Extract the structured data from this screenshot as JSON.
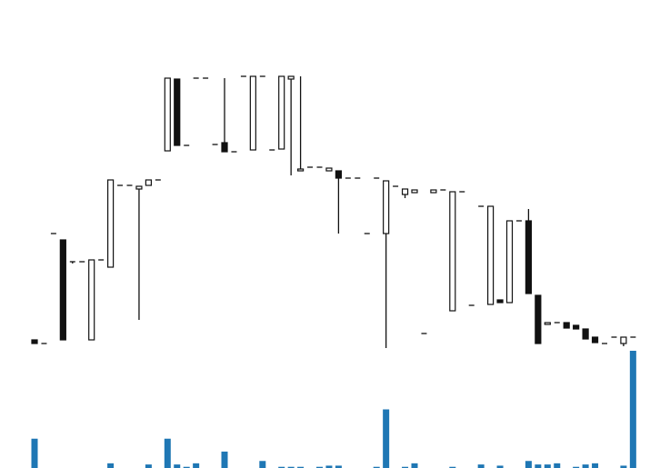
{
  "chart_data": {
    "type": "candlestick",
    "title": "",
    "xlabel": "",
    "ylabel": "",
    "grid": false,
    "legend": "none",
    "colors": {
      "up_body": "#ffffff",
      "up_edge": "#111111",
      "down_body": "#111111",
      "wick": "#111111",
      "volume": "#1f77b4"
    },
    "price_range": [
      -14,
      370
    ],
    "volume_range": [
      0,
      100
    ],
    "candles": [
      {
        "open": 0,
        "high": 0,
        "low": -4,
        "close": -4,
        "volume": 25
      },
      {
        "open": -4,
        "high": -4,
        "low": -4,
        "close": -4,
        "volume": 0
      },
      {
        "open": 117,
        "high": 117,
        "low": 117,
        "close": 117,
        "volume": 0
      },
      {
        "open": 110,
        "high": 110,
        "low": 0,
        "close": 0,
        "volume": 0
      },
      {
        "open": 86,
        "high": 86,
        "low": 84,
        "close": 86,
        "volume": 0
      },
      {
        "open": 86,
        "high": 86,
        "low": 86,
        "close": 86,
        "volume": 0
      },
      {
        "open": 0,
        "high": 88,
        "low": 0,
        "close": 88,
        "volume": 0
      },
      {
        "open": 88,
        "high": 88,
        "low": 88,
        "close": 88,
        "volume": 0
      },
      {
        "open": 80,
        "high": 176,
        "low": 80,
        "close": 176,
        "volume": 4
      },
      {
        "open": 170,
        "high": 170,
        "low": 170,
        "close": 170,
        "volume": 0
      },
      {
        "open": 170,
        "high": 170,
        "low": 170,
        "close": 170,
        "volume": 0
      },
      {
        "open": 166,
        "high": 169,
        "low": 22,
        "close": 169,
        "volume": 0
      },
      {
        "open": 170,
        "high": 176,
        "low": 170,
        "close": 176,
        "volume": 3
      },
      {
        "open": 176,
        "high": 176,
        "low": 176,
        "close": 176,
        "volume": 0
      },
      {
        "open": 208,
        "high": 288,
        "low": 208,
        "close": 288,
        "volume": 25
      },
      {
        "open": 287,
        "high": 287,
        "low": 214,
        "close": 214,
        "volume": 3
      },
      {
        "open": 214,
        "high": 214,
        "low": 214,
        "close": 214,
        "volume": 1
      },
      {
        "open": 288,
        "high": 288,
        "low": 288,
        "close": 288,
        "volume": 4
      },
      {
        "open": 288,
        "high": 288,
        "low": 288,
        "close": 288,
        "volume": 0
      },
      {
        "open": 215,
        "high": 215,
        "low": 215,
        "close": 215,
        "volume": 0
      },
      {
        "open": 217,
        "high": 288,
        "low": 207,
        "close": 207,
        "volume": 14
      },
      {
        "open": 207,
        "high": 207,
        "low": 207,
        "close": 207,
        "volume": 0
      },
      {
        "open": 290,
        "high": 290,
        "low": 290,
        "close": 290,
        "volume": 0
      },
      {
        "open": 209,
        "high": 290,
        "low": 209,
        "close": 290,
        "volume": 0
      },
      {
        "open": 290,
        "high": 290,
        "low": 290,
        "close": 290,
        "volume": 6
      },
      {
        "open": 209,
        "high": 209,
        "low": 209,
        "close": 209,
        "volume": 0
      },
      {
        "open": 210,
        "high": 290,
        "low": 210,
        "close": 290,
        "volume": 1
      },
      {
        "open": 287,
        "high": 290,
        "low": 181,
        "close": 290,
        "volume": 1
      },
      {
        "open": 186,
        "high": 290,
        "low": 186,
        "close": 188,
        "volume": 1
      },
      {
        "open": 190,
        "high": 190,
        "low": 190,
        "close": 190,
        "volume": 0
      },
      {
        "open": 190,
        "high": 190,
        "low": 190,
        "close": 190,
        "volume": 1
      },
      {
        "open": 186,
        "high": 189,
        "low": 186,
        "close": 189,
        "volume": 2
      },
      {
        "open": 186,
        "high": 186,
        "low": 117,
        "close": 178,
        "volume": 2
      },
      {
        "open": 178,
        "high": 178,
        "low": 178,
        "close": 178,
        "volume": 0
      },
      {
        "open": 178,
        "high": 178,
        "low": 178,
        "close": 178,
        "volume": 0
      },
      {
        "open": 117,
        "high": 117,
        "low": 117,
        "close": 117,
        "volume": 0
      },
      {
        "open": 178,
        "high": 178,
        "low": 178,
        "close": 178,
        "volume": 1
      },
      {
        "open": 117,
        "high": 175,
        "low": -9,
        "close": 175,
        "volume": 50
      },
      {
        "open": 169,
        "high": 169,
        "low": 169,
        "close": 169,
        "volume": 0
      },
      {
        "open": 160,
        "high": 166,
        "low": 156,
        "close": 166,
        "volume": 1
      },
      {
        "open": 162,
        "high": 165,
        "low": 162,
        "close": 165,
        "volume": 4
      },
      {
        "open": 7,
        "high": 7,
        "low": 7,
        "close": 7,
        "volume": 0
      },
      {
        "open": 162,
        "high": 165,
        "low": 162,
        "close": 165,
        "volume": 0
      },
      {
        "open": 165,
        "high": 165,
        "low": 165,
        "close": 165,
        "volume": 0
      },
      {
        "open": 32,
        "high": 163,
        "low": 32,
        "close": 163,
        "volume": 1
      },
      {
        "open": 163,
        "high": 163,
        "low": 163,
        "close": 163,
        "volume": 0
      },
      {
        "open": 38,
        "high": 38,
        "low": 38,
        "close": 38,
        "volume": 0
      },
      {
        "open": 147,
        "high": 147,
        "low": 147,
        "close": 147,
        "volume": 3
      },
      {
        "open": 39,
        "high": 147,
        "low": 39,
        "close": 147,
        "volume": 0
      },
      {
        "open": 44,
        "high": 44,
        "low": 41,
        "close": 41,
        "volume": 2
      },
      {
        "open": 41,
        "high": 131,
        "low": 41,
        "close": 131,
        "volume": 0
      },
      {
        "open": 131,
        "high": 131,
        "low": 131,
        "close": 131,
        "volume": 0
      },
      {
        "open": 131,
        "high": 144,
        "low": 51,
        "close": 51,
        "volume": 6
      },
      {
        "open": 49,
        "high": 49,
        "low": -4,
        "close": -4,
        "volume": 3
      },
      {
        "open": 17,
        "high": 19,
        "low": 17,
        "close": 19,
        "volume": 3
      },
      {
        "open": 19,
        "high": 19,
        "low": 19,
        "close": 19,
        "volume": 4
      },
      {
        "open": 19,
        "high": 19,
        "low": 13,
        "close": 13,
        "volume": 0
      },
      {
        "open": 16,
        "high": 16,
        "low": 12,
        "close": 12,
        "volume": 1
      },
      {
        "open": 12,
        "high": 12,
        "low": 1,
        "close": 1,
        "volume": 3
      },
      {
        "open": 3,
        "high": 3,
        "low": -3,
        "close": -3,
        "volume": 4
      },
      {
        "open": -4,
        "high": -4,
        "low": -4,
        "close": -4,
        "volume": 0
      },
      {
        "open": 3,
        "high": 3,
        "low": 3,
        "close": 3,
        "volume": 0
      },
      {
        "open": -4,
        "high": 3,
        "low": -7,
        "close": 3,
        "volume": 2
      },
      {
        "open": 3,
        "high": 3,
        "low": 3,
        "close": 3,
        "volume": 100
      }
    ]
  }
}
